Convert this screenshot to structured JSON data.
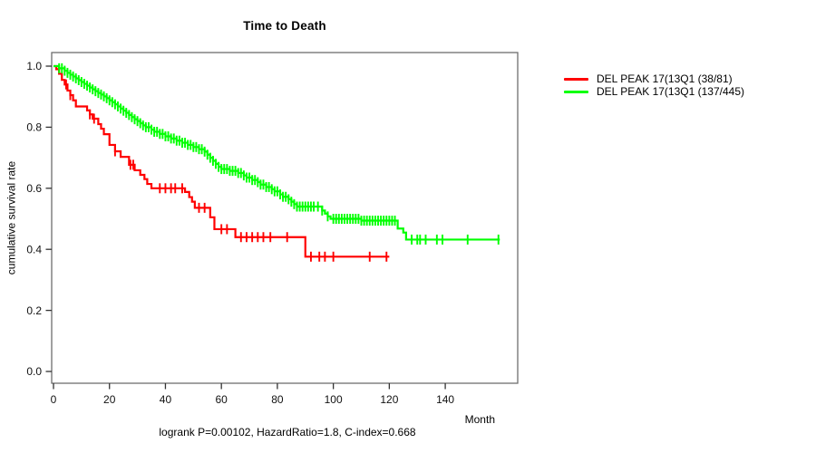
{
  "title": "Time to Death",
  "axes": {
    "x_label": "Month",
    "y_label": "cumulative survival rate"
  },
  "caption": "logrank P=0.00102, HazardRatio=1.8, C-index=0.668",
  "legend": {
    "items": [
      {
        "label": "DEL PEAK 17(13Q1 (38/81)",
        "color": "#ff0000"
      },
      {
        "label": "DEL PEAK 17(13Q1 (137/445)",
        "color": "#00ff00"
      }
    ]
  },
  "chart_data": {
    "type": "line",
    "subtype": "kaplan-meier-step-survival",
    "title": "Time to Death",
    "xlabel": "Month",
    "ylabel": "cumulative survival rate",
    "annotation": "logrank P=0.00102, HazardRatio=1.8, C-index=0.668",
    "grid": false,
    "legend_position": "top-right-outside",
    "xlim": [
      0,
      166
    ],
    "ylim": [
      0,
      1.0
    ],
    "x_tick_labels": [
      "0",
      "20",
      "40",
      "60",
      "80",
      "100",
      "120",
      "140"
    ],
    "y_tick_labels": [
      "0.0",
      "0.2",
      "0.4",
      "0.6",
      "0.8",
      "1.0"
    ],
    "frame_color": "#6e6e6e",
    "tick_color": "#333333",
    "tick_label_color": "#111111",
    "series": [
      {
        "name": "DEL PEAK 17(13Q1 (38/81)",
        "color": "#ff0000",
        "end_month": 120,
        "steps": [
          [
            0,
            1.0
          ],
          [
            1,
            0.99
          ],
          [
            2,
            0.975
          ],
          [
            3,
            0.955
          ],
          [
            4,
            0.94
          ],
          [
            5,
            0.92
          ],
          [
            6,
            0.905
          ],
          [
            7,
            0.888
          ],
          [
            8,
            0.868
          ],
          [
            12,
            0.855
          ],
          [
            13,
            0.842
          ],
          [
            14,
            0.828
          ],
          [
            16,
            0.81
          ],
          [
            17,
            0.795
          ],
          [
            18,
            0.777
          ],
          [
            20,
            0.742
          ],
          [
            22,
            0.721
          ],
          [
            24,
            0.703
          ],
          [
            27,
            0.677
          ],
          [
            29,
            0.659
          ],
          [
            31,
            0.644
          ],
          [
            32.5,
            0.63
          ],
          [
            33.5,
            0.614
          ],
          [
            35,
            0.6
          ],
          [
            47,
            0.588
          ],
          [
            48.5,
            0.571
          ],
          [
            49.5,
            0.556
          ],
          [
            50.5,
            0.536
          ],
          [
            56,
            0.505
          ],
          [
            57.5,
            0.466
          ],
          [
            65,
            0.44
          ],
          [
            90,
            0.376
          ]
        ],
        "censor_months": [
          4.5,
          6,
          13,
          14.5,
          22,
          27.5,
          28.5,
          38,
          40,
          42,
          43.5,
          46,
          52,
          54,
          60,
          62,
          67,
          69,
          71,
          73,
          75,
          77.5,
          83.5,
          92,
          95,
          97,
          100,
          113,
          119
        ]
      },
      {
        "name": "DEL PEAK 17(13Q1 (137/445)",
        "color": "#00ff00",
        "end_month": 159.5,
        "steps": [
          [
            0,
            1.0
          ],
          [
            2,
            0.993
          ],
          [
            4,
            0.985
          ],
          [
            5,
            0.978
          ],
          [
            6,
            0.972
          ],
          [
            7,
            0.966
          ],
          [
            8,
            0.96
          ],
          [
            9,
            0.954
          ],
          [
            10,
            0.948
          ],
          [
            11,
            0.942
          ],
          [
            12,
            0.936
          ],
          [
            13,
            0.93
          ],
          [
            14,
            0.924
          ],
          [
            15,
            0.918
          ],
          [
            16,
            0.912
          ],
          [
            17,
            0.907
          ],
          [
            18,
            0.901
          ],
          [
            19,
            0.895
          ],
          [
            20,
            0.888
          ],
          [
            21,
            0.882
          ],
          [
            22,
            0.875
          ],
          [
            23,
            0.868
          ],
          [
            24,
            0.861
          ],
          [
            25,
            0.854
          ],
          [
            26,
            0.847
          ],
          [
            27,
            0.84
          ],
          [
            28,
            0.833
          ],
          [
            29,
            0.826
          ],
          [
            30,
            0.82
          ],
          [
            31,
            0.813
          ],
          [
            32,
            0.806
          ],
          [
            33,
            0.8
          ],
          [
            35,
            0.792
          ],
          [
            36,
            0.785
          ],
          [
            38,
            0.778
          ],
          [
            40,
            0.77
          ],
          [
            42,
            0.763
          ],
          [
            44,
            0.756
          ],
          [
            46,
            0.749
          ],
          [
            48,
            0.742
          ],
          [
            50,
            0.735
          ],
          [
            52,
            0.728
          ],
          [
            54,
            0.72
          ],
          [
            55,
            0.71
          ],
          [
            56,
            0.7
          ],
          [
            57,
            0.69
          ],
          [
            58,
            0.68
          ],
          [
            59,
            0.67
          ],
          [
            60,
            0.663
          ],
          [
            63,
            0.657
          ],
          [
            66,
            0.65
          ],
          [
            68,
            0.642
          ],
          [
            69,
            0.635
          ],
          [
            71,
            0.627
          ],
          [
            73,
            0.62
          ],
          [
            74,
            0.612
          ],
          [
            76,
            0.604
          ],
          [
            78,
            0.597
          ],
          [
            79,
            0.59
          ],
          [
            81,
            0.58
          ],
          [
            82,
            0.572
          ],
          [
            84,
            0.564
          ],
          [
            85,
            0.556
          ],
          [
            86,
            0.548
          ],
          [
            87,
            0.54
          ],
          [
            96,
            0.527
          ],
          [
            97,
            0.517
          ],
          [
            98,
            0.508
          ],
          [
            99,
            0.5
          ],
          [
            110,
            0.494
          ],
          [
            123,
            0.468
          ],
          [
            125,
            0.455
          ],
          [
            126,
            0.432
          ]
        ],
        "censor_months": [
          2,
          3,
          4,
          5,
          6,
          7,
          8,
          9,
          10,
          11,
          12,
          13,
          14,
          15,
          16,
          17,
          18,
          19,
          20,
          21,
          22,
          23,
          24,
          25,
          26,
          27,
          28,
          29,
          30,
          31,
          32,
          33,
          34,
          35,
          36,
          37,
          38,
          39,
          40,
          41,
          42,
          43,
          44,
          45,
          46,
          47,
          48,
          49,
          50,
          51,
          52,
          53,
          54,
          55,
          56,
          57,
          58,
          59,
          60,
          61,
          62,
          63,
          64,
          65,
          66,
          67,
          68,
          69,
          70,
          71,
          72,
          73,
          74,
          75,
          76,
          77,
          78,
          79,
          80,
          81,
          82,
          83,
          84,
          85,
          86,
          87,
          88,
          89,
          90,
          91,
          92,
          93,
          94.5,
          96,
          98,
          100,
          101,
          102,
          103,
          104,
          105,
          106,
          107,
          108,
          109,
          110,
          111,
          112,
          113,
          114,
          115,
          116,
          117,
          118,
          119,
          120,
          121,
          122,
          128,
          130,
          131,
          133,
          137,
          139,
          148,
          159
        ]
      }
    ]
  }
}
